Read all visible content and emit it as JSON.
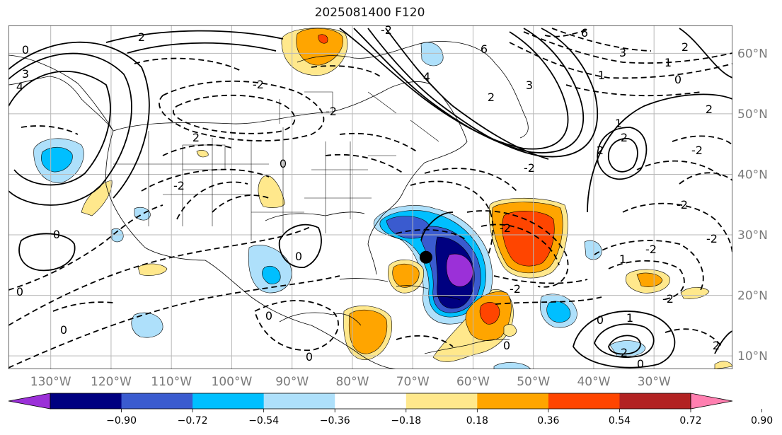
{
  "title": "2025081400 F120",
  "map": {
    "lon_labels": [
      "130°W",
      "120°W",
      "110°W",
      "100°W",
      "90°W",
      "80°W",
      "70°W",
      "60°W",
      "50°W",
      "40°W",
      "30°W"
    ],
    "lat_labels": [
      "60°N",
      "50°N",
      "40°N",
      "30°N",
      "20°N",
      "10°N"
    ],
    "lon_range": [
      -137,
      -17
    ],
    "lat_range": [
      7.8,
      64.6
    ],
    "grid": true,
    "storm_marker": {
      "lon": -67.8,
      "lat": 26.3
    }
  },
  "colorbar": {
    "ticks": [
      "−0.90",
      "−0.72",
      "−0.54",
      "−0.36",
      "−0.18",
      "0.18",
      "0.36",
      "0.54",
      "0.72",
      "0.90"
    ],
    "colors": [
      "#9b30d8",
      "#000080",
      "#3a5bcf",
      "#00bfff",
      "#aee0fb",
      "#ffffff",
      "#ffe88c",
      "#ffa500",
      "#ff4500",
      "#b22222",
      "#ff7fb0"
    ],
    "extend": "both"
  },
  "contour_labels": [
    "0",
    "2",
    "4",
    "6",
    "-2",
    "1",
    "3"
  ]
}
